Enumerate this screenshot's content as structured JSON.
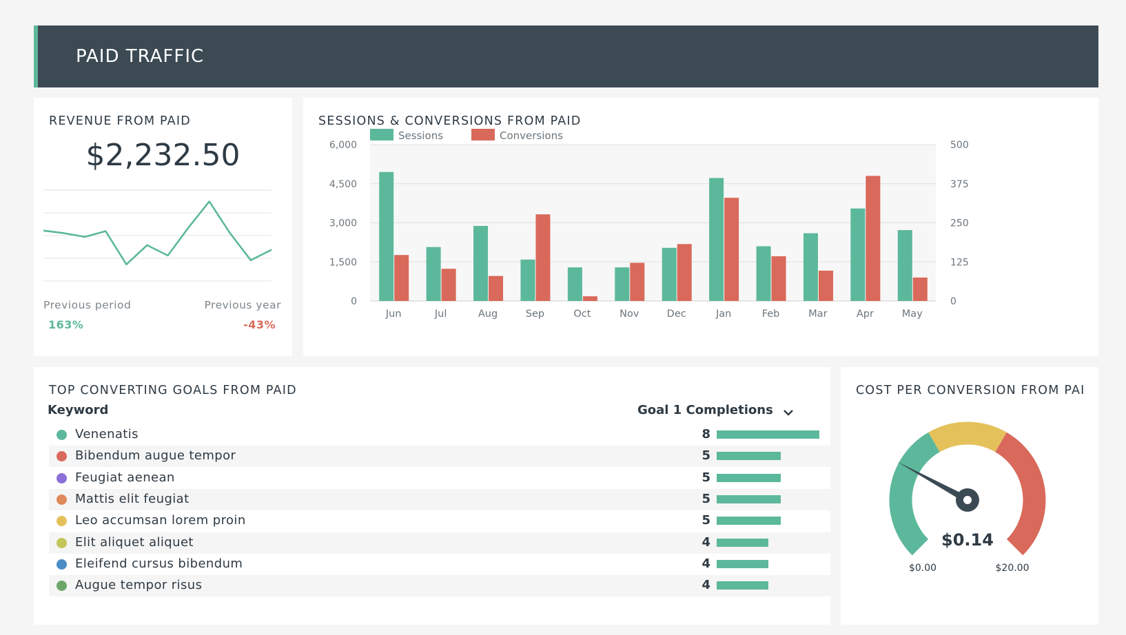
{
  "header": {
    "title": "PAID TRAFFIC"
  },
  "colors": {
    "green": "#5cb89b",
    "red": "#d9695a",
    "yellow": "#e5c15c",
    "header_bg": "#3c4a54"
  },
  "revenue": {
    "title": "REVENUE FROM PAID",
    "value": "$2,232.50",
    "previous_period_label": "Previous period",
    "previous_period_value": "163%",
    "previous_year_label": "Previous year",
    "previous_year_value": "-43%",
    "sparkline": [
      1970,
      1920,
      1850,
      1960,
      1320,
      1690,
      1490,
      2030,
      2530,
      1920,
      1400,
      1600
    ]
  },
  "sessions": {
    "title": "SESSIONS & CONVERSIONS FROM PAID"
  },
  "goals": {
    "title": "TOP CONVERTING GOALS FROM PAID",
    "col_keyword": "Keyword",
    "col_metric": "Goal 1 Completions",
    "rows": [
      {
        "label": "Venenatis",
        "value": 8,
        "color": "#5cb89b"
      },
      {
        "label": "Bibendum augue tempor",
        "value": 5,
        "color": "#d9695a"
      },
      {
        "label": "Feugiat aenean",
        "value": 5,
        "color": "#8b6fd6"
      },
      {
        "label": "Mattis elit feugiat",
        "value": 5,
        "color": "#e0895a"
      },
      {
        "label": "Leo accumsan lorem proin",
        "value": 5,
        "color": "#e5c15c"
      },
      {
        "label": "Elit aliquet aliquet",
        "value": 4,
        "color": "#c2c55a"
      },
      {
        "label": "Eleifend cursus bibendum",
        "value": 4,
        "color": "#4a8cc4"
      },
      {
        "label": "Augue tempor risus",
        "value": 4,
        "color": "#6ca66a"
      }
    ]
  },
  "cost": {
    "title": "COST PER CONVERSION FROM PAI",
    "value": "$0.14",
    "min_label": "$0.00",
    "max_label": "$20.00",
    "min": 0,
    "max": 20,
    "needle_fraction": 0.18
  },
  "chart_data": [
    {
      "type": "bar",
      "title": "SESSIONS & CONVERSIONS FROM PAID",
      "categories": [
        "Jun",
        "Jul",
        "Aug",
        "Sep",
        "Oct",
        "Nov",
        "Dec",
        "Jan",
        "Feb",
        "Mar",
        "Apr",
        "May"
      ],
      "series": [
        {
          "name": "Sessions",
          "axis": "left",
          "color": "#5cb89b",
          "values": [
            4950,
            2070,
            2880,
            1590,
            1290,
            1290,
            2040,
            4720,
            2100,
            2600,
            3550,
            2720
          ]
        },
        {
          "name": "Conversions",
          "axis": "right",
          "color": "#d9695a",
          "values": [
            147,
            103,
            80,
            277,
            15,
            122,
            182,
            330,
            143,
            97,
            400,
            75
          ]
        }
      ],
      "y_left": {
        "ylim": [
          0,
          6000
        ],
        "ticks": [
          "0",
          "1,500",
          "3,000",
          "4,500",
          "6,000"
        ]
      },
      "y_right": {
        "ylim": [
          0,
          500
        ],
        "ticks": [
          "0",
          "125",
          "250",
          "375",
          "500"
        ]
      },
      "grid": true,
      "legend": "top-left"
    }
  ]
}
